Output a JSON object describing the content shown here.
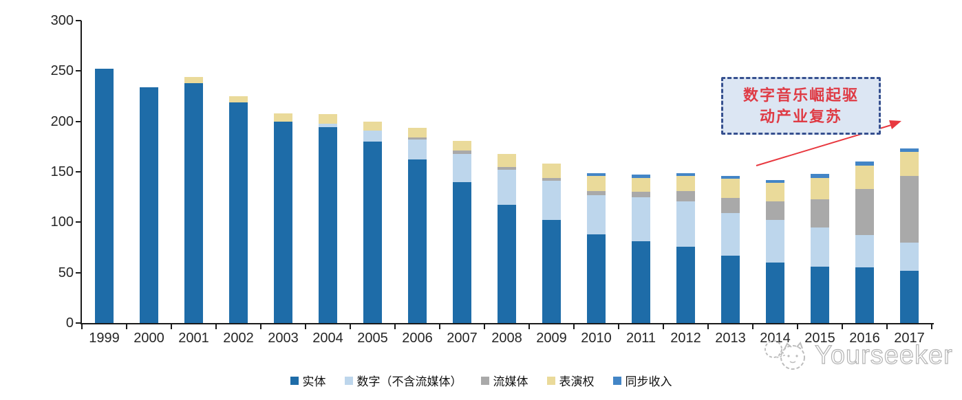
{
  "chart_data": {
    "type": "bar",
    "stacked": true,
    "title": "",
    "xlabel": "",
    "ylabel": "",
    "ylim": [
      0,
      300
    ],
    "y_ticks": [
      0,
      50,
      100,
      150,
      200,
      250,
      300
    ],
    "grid": false,
    "legend_position": "bottom",
    "categories": [
      "1999",
      "2000",
      "2001",
      "2002",
      "2003",
      "2004",
      "2005",
      "2006",
      "2007",
      "2008",
      "2009",
      "2010",
      "2011",
      "2012",
      "2013",
      "2014",
      "2015",
      "2016",
      "2017"
    ],
    "series": [
      {
        "name": "实体",
        "color": "#1E6CA8",
        "values": [
          252,
          234,
          238,
          219,
          200,
          194,
          180,
          162,
          140,
          117,
          102,
          88,
          81,
          76,
          67,
          60,
          56,
          55,
          52
        ]
      },
      {
        "name": "数字（不含流媒体）",
        "color": "#BDD6EC",
        "values": [
          0,
          0,
          0,
          0,
          0,
          4,
          11,
          20,
          28,
          35,
          39,
          39,
          44,
          45,
          42,
          42,
          39,
          32,
          28
        ]
      },
      {
        "name": "流媒体",
        "color": "#A9A9A9",
        "values": [
          0,
          0,
          0,
          0,
          0,
          0,
          0,
          2,
          3,
          3,
          3,
          4,
          5,
          10,
          15,
          19,
          28,
          46,
          66
        ]
      },
      {
        "name": "表演权",
        "color": "#EADA9A",
        "values": [
          0,
          0,
          6,
          6,
          8,
          9,
          9,
          10,
          10,
          13,
          14,
          15,
          14,
          15,
          19,
          18,
          21,
          23,
          24
        ]
      },
      {
        "name": "同步收入",
        "color": "#4385C6",
        "values": [
          0,
          0,
          0,
          0,
          0,
          0,
          0,
          0,
          0,
          0,
          0,
          3,
          3,
          3,
          3,
          3,
          4,
          4,
          3
        ]
      }
    ]
  },
  "annotation": {
    "line1": "数字音乐崛起驱",
    "line2": "动产业复苏",
    "text_color": "#DF3B45",
    "box_fill": "#DCE6F3",
    "box_border": "#36508F",
    "arrow_color": "#E8383F"
  },
  "watermark": {
    "text": "Yourseeker"
  },
  "axis": {
    "color": "#1a1a1a",
    "label_color": "#262626"
  }
}
